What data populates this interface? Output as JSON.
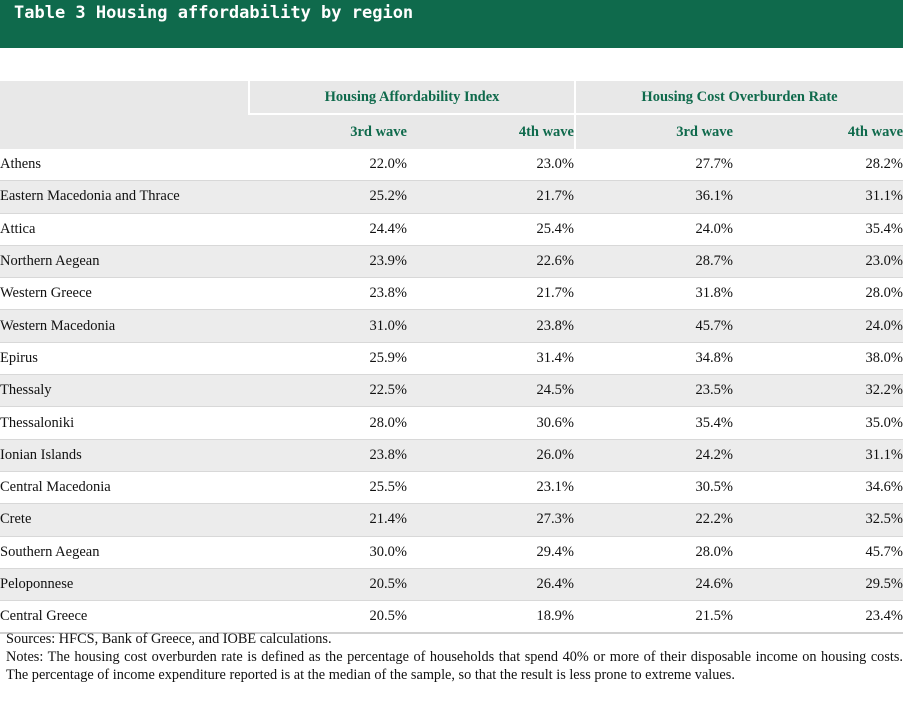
{
  "title": "Table 3 Housing affordability by region",
  "table": {
    "group_headers": [
      "Housing Affordability Index",
      "Housing Cost Overburden Rate"
    ],
    "wave_headers": [
      "3rd wave",
      "4th wave",
      "3rd wave",
      "4th wave"
    ],
    "rows": [
      {
        "region": "Athens",
        "hai_3": "22.0%",
        "hai_4": "23.0%",
        "hcor_3": "27.7%",
        "hcor_4": "28.2%"
      },
      {
        "region": "Eastern Macedonia and Thrace",
        "hai_3": "25.2%",
        "hai_4": "21.7%",
        "hcor_3": "36.1%",
        "hcor_4": "31.1%"
      },
      {
        "region": "Attica",
        "hai_3": "24.4%",
        "hai_4": "25.4%",
        "hcor_3": "24.0%",
        "hcor_4": "35.4%"
      },
      {
        "region": "Northern Aegean",
        "hai_3": "23.9%",
        "hai_4": "22.6%",
        "hcor_3": "28.7%",
        "hcor_4": "23.0%"
      },
      {
        "region": "Western Greece",
        "hai_3": "23.8%",
        "hai_4": "21.7%",
        "hcor_3": "31.8%",
        "hcor_4": "28.0%"
      },
      {
        "region": "Western Macedonia",
        "hai_3": "31.0%",
        "hai_4": "23.8%",
        "hcor_3": "45.7%",
        "hcor_4": "24.0%"
      },
      {
        "region": "Epirus",
        "hai_3": "25.9%",
        "hai_4": "31.4%",
        "hcor_3": "34.8%",
        "hcor_4": "38.0%"
      },
      {
        "region": "Thessaly",
        "hai_3": "22.5%",
        "hai_4": "24.5%",
        "hcor_3": "23.5%",
        "hcor_4": "32.2%"
      },
      {
        "region": "Thessaloniki",
        "hai_3": "28.0%",
        "hai_4": "30.6%",
        "hcor_3": "35.4%",
        "hcor_4": "35.0%"
      },
      {
        "region": "Ionian Islands",
        "hai_3": "23.8%",
        "hai_4": "26.0%",
        "hcor_3": "24.2%",
        "hcor_4": "31.1%"
      },
      {
        "region": "Central Macedonia",
        "hai_3": "25.5%",
        "hai_4": "23.1%",
        "hcor_3": "30.5%",
        "hcor_4": "34.6%"
      },
      {
        "region": "Crete",
        "hai_3": "21.4%",
        "hai_4": "27.3%",
        "hcor_3": "22.2%",
        "hcor_4": "32.5%"
      },
      {
        "region": "Southern Aegean",
        "hai_3": "30.0%",
        "hai_4": "29.4%",
        "hcor_3": "28.0%",
        "hcor_4": "45.7%"
      },
      {
        "region": "Peloponnese",
        "hai_3": "20.5%",
        "hai_4": "26.4%",
        "hcor_3": "24.6%",
        "hcor_4": "29.5%"
      },
      {
        "region": "Central Greece",
        "hai_3": "20.5%",
        "hai_4": "18.9%",
        "hcor_3": "21.5%",
        "hcor_4": "23.4%"
      }
    ]
  },
  "sources": "Sources: HFCS, Bank of Greece, and IOBE calculations.",
  "notes": "Notes: The housing cost overburden rate is defined as the percentage of households that spend 40% or more of their disposable income on housing costs. The percentage of income expenditure reported is at the median of the sample, so that the result is less prone to extreme values.",
  "colors": {
    "accent": "#0f6a4c",
    "header_bg": "#e8e8e8",
    "stripe_bg": "#ececec"
  }
}
